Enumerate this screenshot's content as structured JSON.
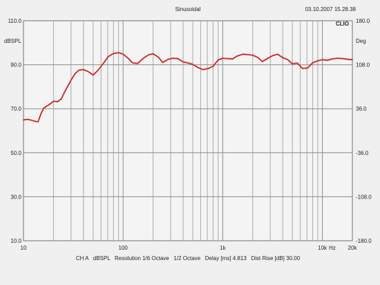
{
  "header": {
    "title": "Sinusoidal",
    "datetime": "03.10.2007 15.28.38",
    "brand": "CLIO"
  },
  "footer": {
    "info": "CH A   dBSPL   Resolution 1/6 Octave   1/2 Octave   Delay [ms] 4.813   Dist Rise [dB] 30.00"
  },
  "chart_data": {
    "type": "line",
    "title": "Sinusoidal",
    "xscale": "log",
    "xlim": [
      10,
      20000
    ],
    "ylim": [
      10,
      110
    ],
    "y2lim": [
      -180,
      180
    ],
    "ylabel": "dBSPL",
    "y2label": "Deg",
    "xunit_label": "Hz",
    "grid": true,
    "x_ticks": [
      {
        "value": 10,
        "label": "10"
      },
      {
        "value": 100,
        "label": "100"
      },
      {
        "value": 1000,
        "label": "1k"
      },
      {
        "value": 10000,
        "label": "10k"
      },
      {
        "value": 20000,
        "label": "20k"
      }
    ],
    "y_ticks": [
      {
        "value": 10,
        "label": "10.0"
      },
      {
        "value": 30,
        "label": "30.0"
      },
      {
        "value": 50,
        "label": "50.0"
      },
      {
        "value": 70,
        "label": "70.0"
      },
      {
        "value": 90,
        "label": "90.0"
      },
      {
        "value": 110,
        "label": "110.0"
      }
    ],
    "y2_ticks": [
      {
        "value": -180,
        "label": "-180.0"
      },
      {
        "value": -108,
        "label": "-108.0"
      },
      {
        "value": -36,
        "label": "-36.0"
      },
      {
        "value": 36,
        "label": "36.0"
      },
      {
        "value": 108,
        "label": "108.0"
      },
      {
        "value": 180,
        "label": "180.0"
      }
    ],
    "series": [
      {
        "color": "#d42020",
        "x": [
          10,
          11,
          12,
          13,
          14,
          15,
          16,
          17,
          18,
          19,
          20,
          22,
          24,
          26,
          28,
          30,
          33,
          36,
          40,
          45,
          50,
          56,
          63,
          71,
          80,
          90,
          100,
          112,
          125,
          140,
          160,
          180,
          200,
          225,
          250,
          280,
          315,
          355,
          400,
          450,
          500,
          560,
          630,
          710,
          800,
          900,
          1000,
          1120,
          1250,
          1400,
          1600,
          1800,
          2000,
          2250,
          2500,
          2800,
          3150,
          3550,
          4000,
          4500,
          5000,
          5600,
          6300,
          7100,
          8000,
          9000,
          10000,
          11200,
          12500,
          14000,
          16000,
          18000,
          20000
        ],
        "y": [
          64.9,
          65.2,
          64.8,
          64.3,
          64.1,
          67.8,
          70.3,
          71.1,
          71.8,
          72.6,
          73.4,
          73.2,
          74.5,
          77.8,
          80.5,
          83.0,
          86.0,
          87.5,
          87.8,
          86.8,
          85.3,
          87.5,
          90.5,
          93.7,
          95.1,
          95.5,
          94.8,
          93.0,
          90.8,
          90.6,
          93.0,
          94.5,
          95.0,
          93.5,
          91.0,
          92.4,
          93.0,
          92.8,
          91.3,
          90.8,
          90.2,
          88.8,
          87.8,
          88.2,
          89.3,
          92.2,
          93.0,
          92.8,
          92.6,
          94.0,
          94.8,
          94.6,
          94.3,
          93.3,
          91.4,
          92.8,
          94.1,
          94.8,
          93.2,
          92.3,
          90.4,
          90.8,
          88.3,
          88.5,
          90.9,
          91.8,
          92.3,
          92.0,
          92.6,
          93.0,
          92.8,
          92.5,
          92.3
        ]
      }
    ]
  }
}
